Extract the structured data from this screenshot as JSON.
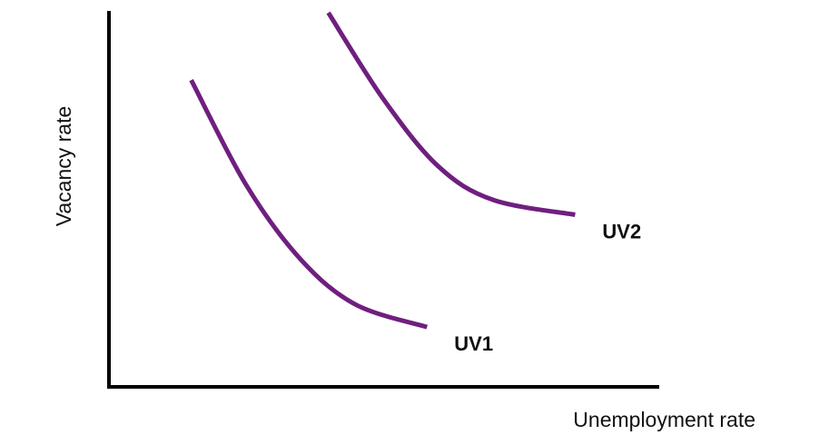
{
  "chart_data": {
    "type": "line",
    "title": "",
    "xlabel": "Unemployment rate",
    "ylabel": "Vacancy rate",
    "xlim": [
      0,
      10
    ],
    "ylim": [
      0,
      10
    ],
    "grid": false,
    "legend": "none",
    "curve_color": "#6f1f7f",
    "axis_color": "#000000",
    "series": [
      {
        "name": "UV1",
        "x": [
          1.5,
          2.5,
          3.5,
          4.5,
          5.8
        ],
        "y": [
          8.2,
          5.4,
          3.4,
          2.2,
          1.6
        ]
      },
      {
        "name": "UV2",
        "x": [
          4.0,
          5.0,
          6.0,
          7.0,
          8.5
        ],
        "y": [
          10.0,
          7.7,
          5.9,
          5.0,
          4.6
        ]
      }
    ]
  }
}
